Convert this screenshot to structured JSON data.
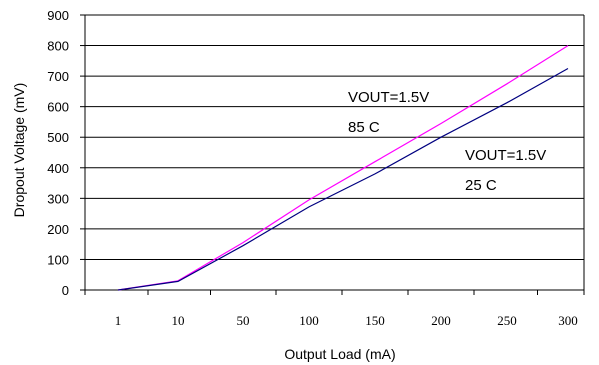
{
  "chart_data": {
    "type": "line",
    "title": "",
    "xlabel": "Output Load (mA)",
    "ylabel": "Dropout Voltage (mV)",
    "categories": [
      "1",
      "10",
      "50",
      "100",
      "150",
      "200",
      "250",
      "300"
    ],
    "ylim": [
      0,
      900
    ],
    "yticks": [
      0,
      100,
      200,
      300,
      400,
      500,
      600,
      700,
      800,
      900
    ],
    "grid": "horizontal",
    "legend": "none",
    "series": [
      {
        "color": "#ff00ff",
        "values": [
          0,
          30,
          155,
          295,
          420,
          545,
          675,
          800
        ]
      },
      {
        "color": "#000080",
        "values": [
          0,
          28,
          145,
          272,
          380,
          500,
          613,
          725
        ]
      }
    ],
    "annotations": [
      {
        "lines": [
          "VOUT=1.5V",
          "85 C"
        ],
        "near": "upper series"
      },
      {
        "lines": [
          "VOUT=1.5V",
          "25 C"
        ],
        "near": "lower series"
      }
    ]
  }
}
